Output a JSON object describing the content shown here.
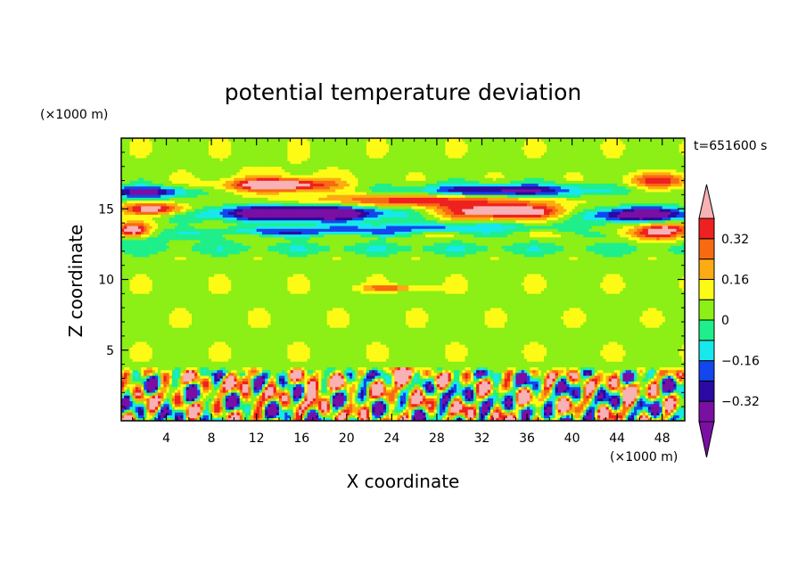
{
  "chart_data": {
    "type": "heatmap",
    "title": "potential temperature deviation",
    "xlabel": "X coordinate",
    "ylabel": "Z coordinate",
    "x_unit": "(×1000 m)",
    "y_unit": "(×1000 m)",
    "time_label": "t=651600 s",
    "xlim": [
      0,
      50
    ],
    "ylim": [
      0,
      20
    ],
    "x_ticks": [
      4,
      8,
      12,
      16,
      20,
      24,
      28,
      32,
      36,
      40,
      44,
      48
    ],
    "y_ticks": [
      5,
      10,
      15
    ],
    "x_tick_labels": [
      "4",
      "8",
      "12",
      "16",
      "20",
      "24",
      "28",
      "32",
      "36",
      "40",
      "44",
      "48"
    ],
    "y_tick_labels": [
      "5",
      "10",
      "15"
    ],
    "colorbar": {
      "levels": [
        -0.4,
        -0.32,
        -0.24,
        -0.16,
        -0.08,
        0,
        0.08,
        0.16,
        0.24,
        0.32,
        0.4
      ],
      "tick_values": [
        -0.32,
        -0.16,
        0,
        0.16,
        0.32
      ],
      "tick_labels": [
        "−0.32",
        "−0.16",
        "0",
        "0.16",
        "0.32"
      ],
      "colors": [
        "#7a0fa3",
        "#2a0aa0",
        "#1446ee",
        "#17e8ec",
        "#1fef8a",
        "#8cef16",
        "#fdfb16",
        "#fdab12",
        "#f86a12",
        "#ef2020",
        "#f8b1b5"
      ]
    }
  }
}
